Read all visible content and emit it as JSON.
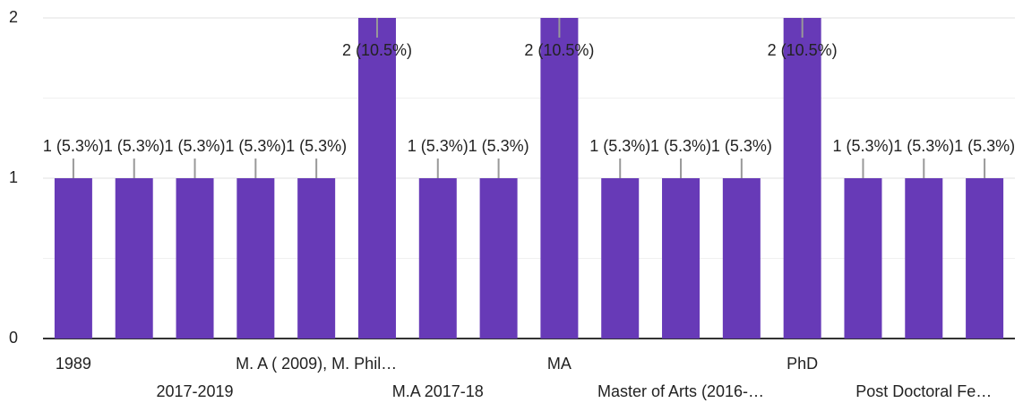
{
  "chart_data": {
    "type": "bar",
    "categories": [
      "1989",
      null,
      "2017-2019",
      null,
      "M. A ( 2009), M. Phil…",
      null,
      "M.A 2017-18",
      null,
      "MA",
      null,
      "Master of Arts (2016-…",
      null,
      "PhD",
      null,
      "Post Doctoral Fe…",
      null
    ],
    "values": [
      1,
      1,
      1,
      1,
      1,
      2,
      1,
      1,
      2,
      1,
      1,
      1,
      2,
      1,
      1,
      1
    ],
    "value_labels": [
      "1 (5.3%)",
      "1 (5.3%)",
      "1 (5.3%)",
      "1 (5.3%)",
      "1 (5.3%)",
      "2 (10.5%)",
      "1 (5.3%)",
      "1 (5.3%)",
      "2 (10.5%)",
      "1 (5.3%)",
      "1 (5.3%)",
      "1 (5.3%)",
      "2 (10.5%)",
      "1 (5.3%)",
      "1 (5.3%)",
      "1 (5.3%)"
    ],
    "color": "#673ab7",
    "ylim": [
      0,
      2
    ],
    "yticks": [
      0,
      1,
      2
    ],
    "grid": true
  }
}
